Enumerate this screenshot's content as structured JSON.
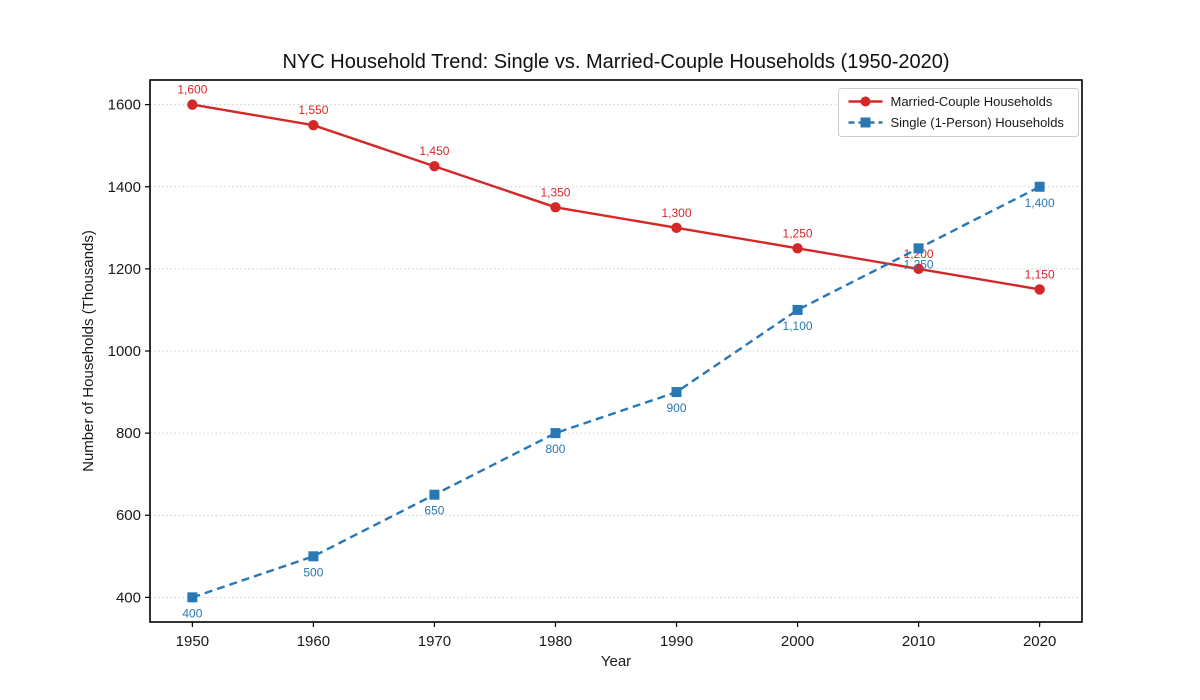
{
  "chart_data": {
    "type": "line",
    "title": "NYC Household Trend: Single vs. Married-Couple Households (1950-2020)",
    "xlabel": "Year",
    "ylabel": "Number of Households (Thousands)",
    "x": [
      1950,
      1960,
      1970,
      1980,
      1990,
      2000,
      2010,
      2020
    ],
    "xticks": [
      "1950",
      "1960",
      "1970",
      "1980",
      "1990",
      "2000",
      "2010",
      "2020"
    ],
    "yticks": [
      400,
      600,
      800,
      1000,
      1200,
      1400,
      1600
    ],
    "xlim": [
      1946.5,
      2023.5
    ],
    "ylim": [
      340,
      1660
    ],
    "grid": {
      "horizontal": true,
      "vertical": false,
      "style": "dotted",
      "color": "#cccccc"
    },
    "legend": {
      "position": "upper-right",
      "background": "#ffffff",
      "border_color": "#cccccc"
    },
    "axis_color": "#000000",
    "series": [
      {
        "name": "Married-Couple Households",
        "values": [
          1600,
          1550,
          1450,
          1350,
          1300,
          1250,
          1200,
          1150
        ],
        "labels": [
          "1,600",
          "1,550",
          "1,450",
          "1,350",
          "1,300",
          "1,250",
          "1,200",
          "1,150"
        ],
        "color": "#d62728",
        "line_style": "solid",
        "marker": "circle",
        "label_position": "above"
      },
      {
        "name": "Single (1-Person) Households",
        "values": [
          400,
          500,
          650,
          800,
          900,
          1100,
          1250,
          1400
        ],
        "labels": [
          "400",
          "500",
          "650",
          "800",
          "900",
          "1,100",
          "1,250",
          "1,400"
        ],
        "color": "#2878b5",
        "line_style": "dashed",
        "marker": "square",
        "label_position": "below"
      }
    ]
  }
}
